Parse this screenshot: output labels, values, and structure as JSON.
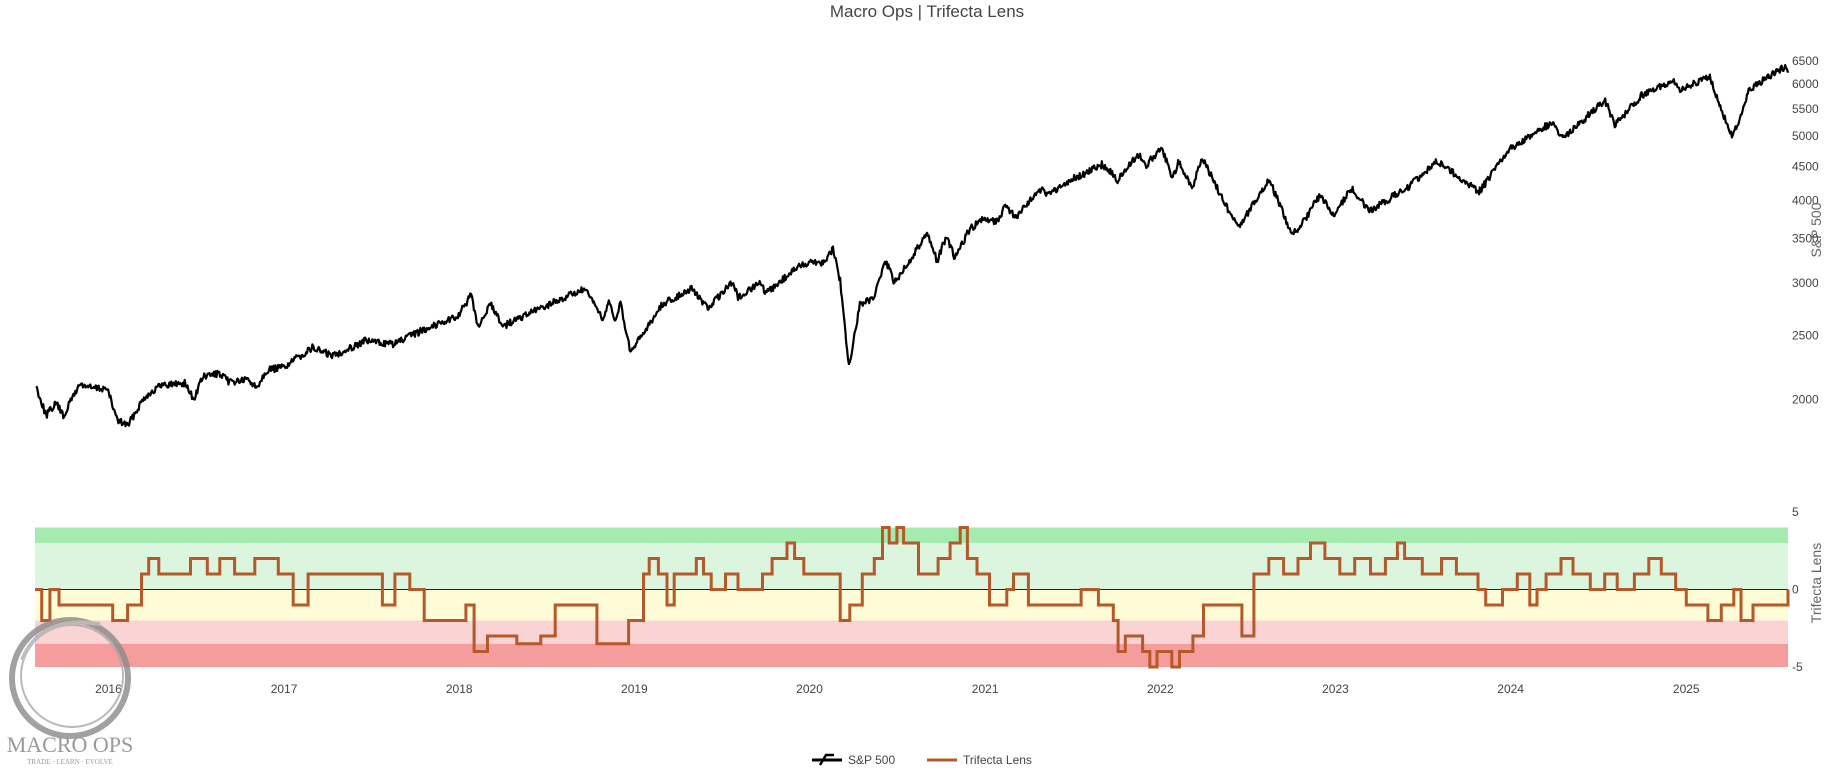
{
  "chart_data": {
    "type": "line",
    "title": "Macro Ops | Trifecta Lens",
    "x_range": [
      "2015-08-01",
      "2025-08-01"
    ],
    "x_tick_labels": [
      "2016",
      "2017",
      "2018",
      "2019",
      "2020",
      "2021",
      "2022",
      "2023",
      "2024",
      "2025"
    ],
    "legend_position": "bottom-center",
    "upper_panel": {
      "ylabel": "S&P 500",
      "y_axis_side": "right",
      "scale": "log",
      "y_range": [
        1780,
        6750
      ],
      "y_ticks": [
        2000,
        2500,
        3000,
        3500,
        4000,
        4500,
        5000,
        5500,
        6000,
        6500
      ],
      "grid": false,
      "series": [
        {
          "name": "S&P 500",
          "color": "#000000",
          "points": [
            [
              "2015-08-03",
              2098
            ],
            [
              "2015-08-24",
              1893
            ],
            [
              "2015-09-15",
              1978
            ],
            [
              "2015-09-29",
              1884
            ],
            [
              "2015-10-20",
              2030
            ],
            [
              "2015-11-03",
              2109
            ],
            [
              "2015-11-30",
              2080
            ],
            [
              "2015-12-29",
              2078
            ],
            [
              "2016-01-20",
              1859
            ],
            [
              "2016-02-11",
              1829
            ],
            [
              "2016-03-15",
              2015
            ],
            [
              "2016-04-20",
              2102
            ],
            [
              "2016-06-08",
              2119
            ],
            [
              "2016-06-27",
              2000
            ],
            [
              "2016-07-15",
              2161
            ],
            [
              "2016-08-15",
              2190
            ],
            [
              "2016-09-09",
              2128
            ],
            [
              "2016-10-20",
              2141
            ],
            [
              "2016-11-04",
              2085
            ],
            [
              "2016-11-25",
              2213
            ],
            [
              "2016-12-31",
              2238
            ],
            [
              "2017-03-01",
              2395
            ],
            [
              "2017-04-13",
              2329
            ],
            [
              "2017-06-19",
              2453
            ],
            [
              "2017-08-18",
              2425
            ],
            [
              "2017-10-31",
              2575
            ],
            [
              "2017-12-29",
              2673
            ],
            [
              "2018-01-26",
              2872
            ],
            [
              "2018-02-08",
              2581
            ],
            [
              "2018-03-09",
              2786
            ],
            [
              "2018-04-02",
              2581
            ],
            [
              "2018-05-31",
              2705
            ],
            [
              "2018-08-31",
              2901
            ],
            [
              "2018-09-20",
              2930
            ],
            [
              "2018-10-29",
              2641
            ],
            [
              "2018-11-07",
              2813
            ],
            [
              "2018-11-23",
              2632
            ],
            [
              "2018-12-03",
              2790
            ],
            [
              "2018-12-24",
              2351
            ],
            [
              "2019-02-28",
              2784
            ],
            [
              "2019-04-30",
              2945
            ],
            [
              "2019-06-03",
              2744
            ],
            [
              "2019-07-26",
              3025
            ],
            [
              "2019-08-05",
              2844
            ],
            [
              "2019-09-19",
              3006
            ],
            [
              "2019-10-02",
              2887
            ],
            [
              "2019-11-29",
              3141
            ],
            [
              "2019-12-31",
              3231
            ],
            [
              "2020-01-31",
              3225
            ],
            [
              "2020-02-19",
              3386
            ],
            [
              "2020-03-05",
              3023
            ],
            [
              "2020-03-23",
              2237
            ],
            [
              "2020-04-15",
              2784
            ],
            [
              "2020-05-14",
              2852
            ],
            [
              "2020-06-08",
              3232
            ],
            [
              "2020-06-26",
              3009
            ],
            [
              "2020-07-31",
              3271
            ],
            [
              "2020-09-02",
              3580
            ],
            [
              "2020-09-23",
              3237
            ],
            [
              "2020-10-12",
              3535
            ],
            [
              "2020-10-30",
              3270
            ],
            [
              "2020-11-30",
              3622
            ],
            [
              "2020-12-31",
              3756
            ],
            [
              "2021-01-29",
              3714
            ],
            [
              "2021-02-12",
              3934
            ],
            [
              "2021-03-04",
              3768
            ],
            [
              "2021-04-30",
              4181
            ],
            [
              "2021-05-12",
              4063
            ],
            [
              "2021-06-30",
              4297
            ],
            [
              "2021-08-31",
              4522
            ],
            [
              "2021-09-02",
              4537
            ],
            [
              "2021-10-04",
              4300
            ],
            [
              "2021-11-18",
              4704
            ],
            [
              "2021-12-01",
              4513
            ],
            [
              "2022-01-03",
              4796
            ],
            [
              "2022-01-27",
              4326
            ],
            [
              "2022-02-09",
              4587
            ],
            [
              "2022-03-08",
              4170
            ],
            [
              "2022-03-29",
              4631
            ],
            [
              "2022-05-20",
              3901
            ],
            [
              "2022-06-16",
              3667
            ],
            [
              "2022-08-16",
              4305
            ],
            [
              "2022-09-30",
              3585
            ],
            [
              "2022-10-12",
              3577
            ],
            [
              "2022-11-30",
              4080
            ],
            [
              "2022-12-28",
              3783
            ],
            [
              "2023-02-02",
              4179
            ],
            [
              "2023-03-13",
              3855
            ],
            [
              "2023-05-31",
              4180
            ],
            [
              "2023-07-31",
              4589
            ],
            [
              "2023-10-27",
              4117
            ],
            [
              "2023-12-29",
              4770
            ],
            [
              "2024-03-28",
              5254
            ],
            [
              "2024-04-19",
              4967
            ],
            [
              "2024-07-16",
              5667
            ],
            [
              "2024-08-05",
              5186
            ],
            [
              "2024-09-30",
              5762
            ],
            [
              "2024-12-06",
              6090
            ],
            [
              "2024-12-19",
              5867
            ],
            [
              "2025-02-19",
              6144
            ],
            [
              "2025-03-13",
              5522
            ],
            [
              "2025-04-08",
              4982
            ],
            [
              "2025-05-13",
              5886
            ],
            [
              "2025-06-30",
              6205
            ],
            [
              "2025-07-28",
              6390
            ],
            [
              "2025-08-01",
              6238
            ]
          ]
        }
      ]
    },
    "lower_panel": {
      "ylabel": "Trifecta Lens",
      "y_axis_side": "right",
      "y_range": [
        -5,
        5
      ],
      "y_ticks": [
        -5,
        0,
        5
      ],
      "zero_line": true,
      "bands": [
        {
          "from": 3,
          "to": 4,
          "color": "#a5ebaf"
        },
        {
          "from": 0,
          "to": 3,
          "color": "#dbf5df"
        },
        {
          "from": -2,
          "to": 0,
          "color": "#fdfcd7"
        },
        {
          "from": -3.5,
          "to": -2,
          "color": "#fad4d4"
        },
        {
          "from": -6,
          "to": -3.5,
          "color": "#f59d9d"
        }
      ],
      "series": [
        {
          "name": "Trifecta Lens",
          "color": "#b5592a",
          "points": [
            [
              "2015-08-01",
              0
            ],
            [
              "2015-08-15",
              -2
            ],
            [
              "2015-09-01",
              0
            ],
            [
              "2015-09-20",
              -1
            ],
            [
              "2016-01-10",
              -2
            ],
            [
              "2016-02-10",
              -1
            ],
            [
              "2016-03-10",
              1
            ],
            [
              "2016-03-25",
              2
            ],
            [
              "2016-04-15",
              1
            ],
            [
              "2016-06-20",
              2
            ],
            [
              "2016-07-25",
              1
            ],
            [
              "2016-08-20",
              2
            ],
            [
              "2016-09-20",
              1
            ],
            [
              "2016-11-01",
              2
            ],
            [
              "2016-12-20",
              1
            ],
            [
              "2017-01-20",
              -1
            ],
            [
              "2017-02-20",
              1
            ],
            [
              "2017-07-15",
              1
            ],
            [
              "2017-07-25",
              -1
            ],
            [
              "2017-08-20",
              1
            ],
            [
              "2017-09-20",
              0
            ],
            [
              "2017-10-20",
              -2
            ],
            [
              "2017-11-15",
              -2
            ],
            [
              "2018-01-15",
              -1
            ],
            [
              "2018-02-01",
              -4
            ],
            [
              "2018-03-01",
              -3
            ],
            [
              "2018-04-01",
              -3
            ],
            [
              "2018-05-01",
              -3.5
            ],
            [
              "2018-06-20",
              -3
            ],
            [
              "2018-07-20",
              -1
            ],
            [
              "2018-09-20",
              -1
            ],
            [
              "2018-10-15",
              -3.5
            ],
            [
              "2018-12-20",
              -2
            ],
            [
              "2019-01-20",
              1
            ],
            [
              "2019-02-01",
              2
            ],
            [
              "2019-02-20",
              1
            ],
            [
              "2019-03-10",
              -1
            ],
            [
              "2019-03-25",
              1
            ],
            [
              "2019-05-10",
              2
            ],
            [
              "2019-05-25",
              1
            ],
            [
              "2019-06-10",
              0
            ],
            [
              "2019-07-10",
              1
            ],
            [
              "2019-08-05",
              0
            ],
            [
              "2019-09-25",
              1
            ],
            [
              "2019-10-15",
              2
            ],
            [
              "2019-11-15",
              3
            ],
            [
              "2019-12-01",
              2
            ],
            [
              "2019-12-20",
              1
            ],
            [
              "2020-02-01",
              1
            ],
            [
              "2020-03-05",
              -2
            ],
            [
              "2020-03-25",
              -1
            ],
            [
              "2020-04-20",
              1
            ],
            [
              "2020-05-15",
              2
            ],
            [
              "2020-06-01",
              4
            ],
            [
              "2020-06-15",
              3
            ],
            [
              "2020-07-01",
              4
            ],
            [
              "2020-07-15",
              3
            ],
            [
              "2020-08-15",
              1
            ],
            [
              "2020-09-25",
              2
            ],
            [
              "2020-10-20",
              3
            ],
            [
              "2020-11-10",
              4
            ],
            [
              "2020-11-25",
              2
            ],
            [
              "2020-12-15",
              1
            ],
            [
              "2021-01-10",
              -1
            ],
            [
              "2021-02-15",
              0
            ],
            [
              "2021-03-01",
              1
            ],
            [
              "2021-04-01",
              -1
            ],
            [
              "2021-06-20",
              -1
            ],
            [
              "2021-07-20",
              0
            ],
            [
              "2021-08-25",
              -1
            ],
            [
              "2021-09-25",
              -2
            ],
            [
              "2021-10-05",
              -4
            ],
            [
              "2021-10-20",
              -3
            ],
            [
              "2021-11-25",
              -4
            ],
            [
              "2021-12-10",
              -5
            ],
            [
              "2021-12-25",
              -4
            ],
            [
              "2022-01-25",
              -5
            ],
            [
              "2022-02-10",
              -4
            ],
            [
              "2022-03-10",
              -3
            ],
            [
              "2022-04-01",
              -1
            ],
            [
              "2022-05-15",
              -1
            ],
            [
              "2022-06-20",
              -3
            ],
            [
              "2022-07-15",
              1
            ],
            [
              "2022-08-15",
              2
            ],
            [
              "2022-09-15",
              1
            ],
            [
              "2022-10-15",
              2
            ],
            [
              "2022-11-10",
              3
            ],
            [
              "2022-12-10",
              2
            ],
            [
              "2023-01-10",
              1
            ],
            [
              "2023-02-10",
              2
            ],
            [
              "2023-03-15",
              1
            ],
            [
              "2023-04-15",
              2
            ],
            [
              "2023-05-10",
              3
            ],
            [
              "2023-05-25",
              2
            ],
            [
              "2023-07-01",
              1
            ],
            [
              "2023-08-10",
              2
            ],
            [
              "2023-09-10",
              1
            ],
            [
              "2023-10-25",
              0
            ],
            [
              "2023-11-10",
              -1
            ],
            [
              "2023-12-15",
              0
            ],
            [
              "2024-01-15",
              1
            ],
            [
              "2024-02-10",
              -1
            ],
            [
              "2024-02-25",
              0
            ],
            [
              "2024-03-15",
              1
            ],
            [
              "2024-04-15",
              2
            ],
            [
              "2024-05-10",
              1
            ],
            [
              "2024-06-15",
              0
            ],
            [
              "2024-07-15",
              1
            ],
            [
              "2024-08-10",
              0
            ],
            [
              "2024-09-15",
              1
            ],
            [
              "2024-10-15",
              2
            ],
            [
              "2024-11-10",
              1
            ],
            [
              "2024-12-10",
              0
            ],
            [
              "2025-01-01",
              -1
            ],
            [
              "2025-02-15",
              -2
            ],
            [
              "2025-03-15",
              -1
            ],
            [
              "2025-04-10",
              0
            ],
            [
              "2025-04-25",
              -2
            ],
            [
              "2025-05-20",
              -1
            ],
            [
              "2025-07-15",
              -1
            ],
            [
              "2025-08-01",
              0
            ]
          ]
        }
      ]
    }
  },
  "legend": {
    "items": [
      {
        "label": "S&P 500",
        "color": "#000000"
      },
      {
        "label": "Trifecta Lens",
        "color": "#b5592a"
      }
    ]
  },
  "logo": {
    "name": "MACRO OPS",
    "tagline": "TRADE · LEARN · EVOLVE"
  }
}
